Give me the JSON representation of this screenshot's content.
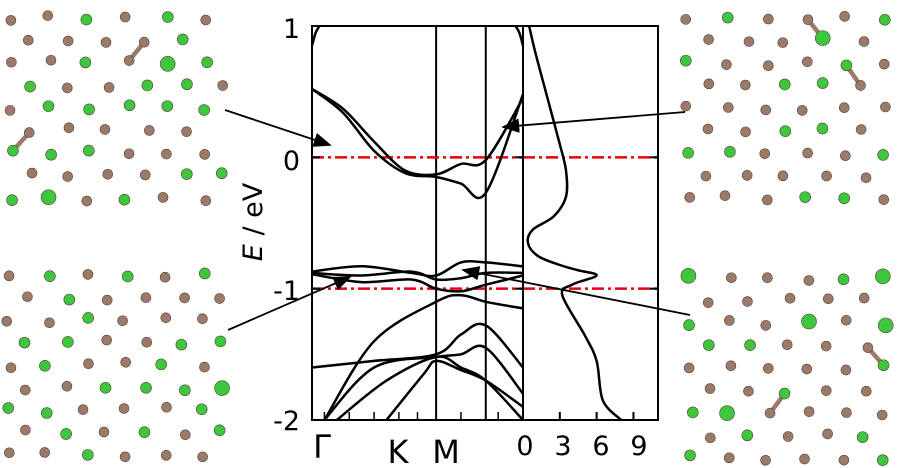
{
  "colors": {
    "band": "#000000",
    "fermi_line": "#e8000b",
    "carbon_atom": "#9a7a68",
    "bond": "#9a7a68",
    "dopant_atom": "#3fc63f"
  },
  "chart_data": [
    {
      "type": "line",
      "name": "band structure",
      "ylabel_italic": "E",
      "ylabel_rest": " / eV",
      "ylim": [
        -2,
        1
      ],
      "yticks": [
        "1",
        "0",
        "-1",
        "-2"
      ],
      "kpath_labels": [
        "Γ",
        "K",
        "M"
      ],
      "reference_lines": [
        0,
        -1
      ],
      "bands": [
        {
          "x": [
            0,
            0.25,
            0.5,
            0.75,
            1.0,
            1.2,
            1.4,
            1.7
          ],
          "y": [
            0.52,
            0.37,
            0.12,
            -0.1,
            -0.13,
            -0.05,
            -0.02,
            0.45
          ]
        },
        {
          "x": [
            0,
            0.25,
            0.5,
            0.75,
            1.0,
            1.2,
            1.4,
            1.7
          ],
          "y": [
            0.52,
            0.34,
            0.05,
            -0.12,
            -0.15,
            -0.2,
            -0.27,
            0.48
          ]
        },
        {
          "x": [
            0,
            0.4,
            0.8,
            1.0,
            1.2,
            1.4,
            1.7
          ],
          "y": [
            -0.87,
            -0.83,
            -0.88,
            -0.9,
            -0.8,
            -0.8,
            -0.83
          ]
        },
        {
          "x": [
            0,
            0.4,
            0.8,
            1.0,
            1.2,
            1.4,
            1.7
          ],
          "y": [
            -0.88,
            -0.9,
            -0.87,
            -0.93,
            -0.92,
            -0.88,
            -0.88
          ]
        },
        {
          "x": [
            0,
            0.4,
            0.8,
            1.0,
            1.2,
            1.4,
            1.7
          ],
          "y": [
            -0.89,
            -0.95,
            -0.93,
            -1.0,
            -1.02,
            -0.97,
            -0.9
          ]
        },
        {
          "x": [
            0.1,
            0.5,
            1.0,
            1.2,
            1.4,
            1.7
          ],
          "y": [
            -2.0,
            -1.4,
            -1.1,
            -1.05,
            -1.1,
            -1.15
          ]
        },
        {
          "x": [
            0,
            0.5,
            1.0,
            1.2,
            1.4,
            1.7
          ],
          "y": [
            -1.6,
            -1.55,
            -1.5,
            -1.35,
            -1.28,
            -1.6
          ]
        },
        {
          "x": [
            0.1,
            0.5,
            1.0,
            1.2,
            1.4,
            1.7
          ],
          "y": [
            -2.0,
            -1.6,
            -1.52,
            -1.5,
            -1.45,
            -1.8
          ]
        },
        {
          "x": [
            0.2,
            0.6,
            1.0,
            1.2,
            1.4,
            1.7
          ],
          "y": [
            -2.0,
            -1.7,
            -1.52,
            -1.6,
            -1.7,
            -2.0
          ]
        },
        {
          "x": [
            0.6,
            0.9,
            1.0,
            1.2,
            1.4,
            1.7
          ],
          "y": [
            -2.0,
            -1.65,
            -1.55,
            -1.62,
            -1.7,
            -1.9
          ]
        },
        {
          "x": [
            0,
            0.03,
            0.06
          ],
          "y": [
            0.85,
            0.95,
            1.0
          ]
        },
        {
          "x": [
            1.64,
            1.67,
            1.7
          ],
          "y": [
            1.0,
            0.95,
            0.85
          ]
        }
      ],
      "high_symmetry_x": [
        0,
        1.0,
        1.4,
        1.7
      ]
    },
    {
      "type": "line",
      "name": "density of states",
      "xticks": [
        "0",
        "3",
        "6",
        "9"
      ],
      "xlim": [
        0,
        11
      ],
      "ylim": [
        -2,
        1
      ],
      "reference_lines": [
        0,
        -1
      ],
      "x": [
        0.5,
        1.0,
        2.0,
        3.0,
        3.5,
        3.5,
        2.5,
        0.8,
        0.4,
        1.2,
        3.0,
        4.5,
        6.0,
        4.0,
        3.2,
        5.0,
        6.0,
        6.5,
        8.0
      ],
      "y": [
        1.0,
        0.8,
        0.45,
        0.1,
        -0.1,
        -0.3,
        -0.45,
        -0.55,
        -0.65,
        -0.75,
        -0.82,
        -0.86,
        -0.9,
        -0.97,
        -1.05,
        -1.35,
        -1.55,
        -1.85,
        -2.0
      ]
    }
  ]
}
